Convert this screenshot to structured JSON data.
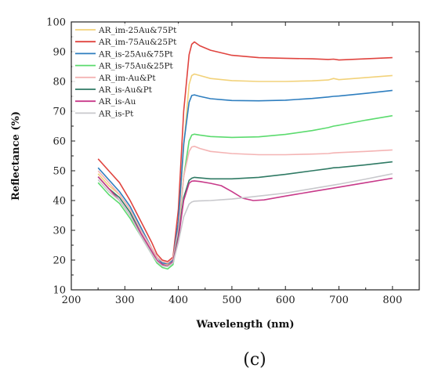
{
  "chart_data": {
    "type": "line",
    "title": "",
    "xlabel": "Wavelength (nm)",
    "ylabel": "Reflectance (%)",
    "xlim": [
      200,
      850
    ],
    "ylim": [
      10,
      100
    ],
    "xticks": [
      200,
      300,
      400,
      500,
      600,
      700,
      800
    ],
    "yticks": [
      10,
      20,
      30,
      40,
      50,
      60,
      70,
      80,
      90,
      100
    ],
    "grid": false,
    "legend_position": "top-left",
    "panel_label": "(c)",
    "series": [
      {
        "name": "AR_im-25Au&75Pt",
        "color": "#f2d27a",
        "x": [
          250,
          270,
          290,
          310,
          330,
          350,
          360,
          370,
          380,
          390,
          400,
          410,
          420,
          425,
          430,
          440,
          460,
          500,
          550,
          600,
          650,
          680,
          690,
          700,
          750,
          800
        ],
        "y": [
          49,
          45,
          42,
          37,
          31,
          24,
          21,
          19,
          18.5,
          20,
          32,
          58,
          79,
          82,
          82.5,
          82,
          81,
          80.3,
          80,
          80,
          80.2,
          80.5,
          81,
          80.6,
          81.3,
          82
        ]
      },
      {
        "name": "AR_im-75Au&25Pt",
        "color": "#e0443f",
        "x": [
          250,
          270,
          290,
          310,
          330,
          350,
          360,
          370,
          380,
          390,
          400,
          410,
          420,
          425,
          430,
          440,
          460,
          500,
          550,
          600,
          650,
          680,
          690,
          700,
          750,
          800
        ],
        "y": [
          54,
          50,
          46,
          40,
          33,
          26,
          22,
          20,
          19.5,
          21,
          37,
          70,
          89,
          92.5,
          93.3,
          92,
          90.5,
          88.8,
          88,
          87.8,
          87.6,
          87.4,
          87.5,
          87.2,
          87.6,
          88
        ]
      },
      {
        "name": "AR_is-25Au&75Pt",
        "color": "#2e7ebf",
        "x": [
          250,
          270,
          290,
          310,
          330,
          350,
          360,
          370,
          380,
          390,
          400,
          410,
          420,
          425,
          430,
          440,
          460,
          500,
          550,
          600,
          650,
          680,
          690,
          700,
          750,
          800
        ],
        "y": [
          51,
          47,
          43,
          38,
          31,
          24,
          21,
          19,
          18.8,
          20,
          33,
          59,
          73,
          75.3,
          75.5,
          75,
          74.2,
          73.6,
          73.5,
          73.7,
          74.3,
          74.8,
          75,
          75.1,
          76,
          77
        ]
      },
      {
        "name": "AR_is-75Au&25Pt",
        "color": "#5bdb6e",
        "x": [
          250,
          270,
          290,
          310,
          330,
          350,
          360,
          370,
          380,
          390,
          400,
          410,
          420,
          425,
          430,
          440,
          460,
          500,
          550,
          600,
          650,
          680,
          690,
          700,
          750,
          800
        ],
        "y": [
          46,
          42,
          39,
          34,
          28,
          22,
          19,
          17.5,
          17,
          18.5,
          28,
          48,
          60,
          62,
          62.3,
          62,
          61.5,
          61.2,
          61.4,
          62.2,
          63.5,
          64.5,
          65,
          65.3,
          67,
          68.5
        ]
      },
      {
        "name": "AR_im-Au&Pt",
        "color": "#f4b4b4",
        "x": [
          250,
          270,
          290,
          310,
          330,
          350,
          360,
          370,
          380,
          390,
          400,
          410,
          420,
          425,
          430,
          440,
          460,
          500,
          550,
          600,
          650,
          680,
          690,
          700,
          750,
          800
        ],
        "y": [
          50,
          46,
          42,
          37,
          30,
          24,
          21,
          19.5,
          19,
          20.5,
          30,
          48,
          56.5,
          58,
          58.2,
          57.5,
          56.5,
          55.8,
          55.4,
          55.4,
          55.6,
          55.8,
          56,
          56.1,
          56.5,
          57
        ]
      },
      {
        "name": "AR_is-Au&Pt",
        "color": "#2f7a64",
        "x": [
          250,
          270,
          290,
          310,
          330,
          350,
          360,
          370,
          380,
          390,
          400,
          410,
          420,
          425,
          430,
          440,
          460,
          500,
          550,
          600,
          650,
          680,
          690,
          700,
          750,
          800
        ],
        "y": [
          48,
          44,
          41,
          36,
          29,
          23,
          20,
          18.5,
          18,
          19.5,
          28,
          41,
          46.8,
          47.5,
          47.8,
          47.6,
          47.3,
          47.3,
          47.8,
          48.8,
          50,
          50.7,
          51,
          51.1,
          52,
          53
        ]
      },
      {
        "name": "AR_is-Au",
        "color": "#c83a8a",
        "x": [
          250,
          270,
          290,
          310,
          330,
          350,
          360,
          370,
          380,
          390,
          400,
          410,
          420,
          425,
          430,
          440,
          460,
          480,
          500,
          520,
          540,
          560,
          600,
          650,
          700,
          750,
          800
        ],
        "y": [
          48,
          44,
          40,
          35,
          29,
          23,
          20,
          18.5,
          18,
          19.5,
          27,
          40,
          45.8,
          46.5,
          46.6,
          46.4,
          45.8,
          45,
          43,
          40.8,
          40,
          40.2,
          41.5,
          43,
          44.5,
          46,
          47.5
        ]
      },
      {
        "name": "AR_is-Pt",
        "color": "#c8c8cc",
        "x": [
          250,
          270,
          290,
          310,
          330,
          350,
          360,
          370,
          380,
          390,
          400,
          410,
          420,
          425,
          430,
          440,
          460,
          500,
          550,
          600,
          650,
          700,
          750,
          800
        ],
        "y": [
          47,
          43,
          40,
          35,
          28,
          22,
          19.5,
          18,
          17.8,
          19,
          26,
          34.5,
          38.8,
          39.5,
          39.8,
          39.9,
          40,
          40.5,
          41.5,
          42.5,
          44,
          45.5,
          47.2,
          49
        ]
      }
    ]
  }
}
